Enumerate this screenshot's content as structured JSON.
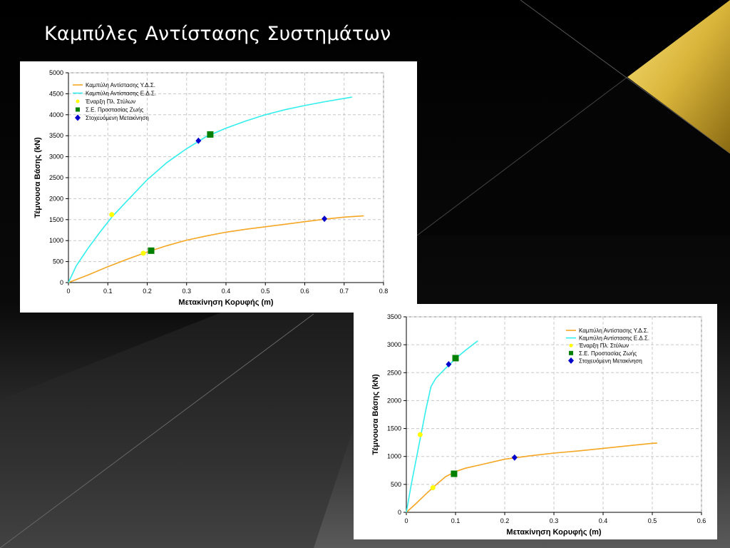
{
  "slide": {
    "title": "Καμπύλες Αντίστασης Συστημάτων",
    "colors": {
      "background": "#000000",
      "accent_gold": "#d9b43a"
    }
  },
  "chart_data": [
    {
      "type": "line",
      "xlabel": "Μετακίνηση Κορυφής (m)",
      "ylabel": "Τέμνουσα Βάσης (kN)",
      "xlim": [
        0,
        0.8
      ],
      "ylim": [
        0,
        5000
      ],
      "xticks": [
        0,
        0.1,
        0.2,
        0.3,
        0.4,
        0.5,
        0.6,
        0.7,
        0.8
      ],
      "yticks": [
        0,
        500,
        1000,
        1500,
        2000,
        2500,
        3000,
        3500,
        4000,
        4500,
        5000
      ],
      "grid": true,
      "legend_position": "top-left",
      "series": [
        {
          "name": "Καμπύλη Αντίστασης Υ.Δ.Σ.",
          "kind": "line",
          "color": "#f5a623",
          "points": [
            [
              0,
              0
            ],
            [
              0.05,
              180
            ],
            [
              0.1,
              380
            ],
            [
              0.15,
              560
            ],
            [
              0.2,
              730
            ],
            [
              0.25,
              880
            ],
            [
              0.3,
              1010
            ],
            [
              0.35,
              1110
            ],
            [
              0.4,
              1200
            ],
            [
              0.45,
              1270
            ],
            [
              0.5,
              1330
            ],
            [
              0.55,
              1390
            ],
            [
              0.6,
              1450
            ],
            [
              0.65,
              1510
            ],
            [
              0.7,
              1560
            ],
            [
              0.75,
              1590
            ]
          ]
        },
        {
          "name": "Καμπύλη Αντίστασης Ε.Δ.Σ.",
          "kind": "line",
          "color": "#33eeee",
          "points": [
            [
              0,
              0
            ],
            [
              0.02,
              400
            ],
            [
              0.05,
              820
            ],
            [
              0.08,
              1200
            ],
            [
              0.11,
              1560
            ],
            [
              0.15,
              1960
            ],
            [
              0.2,
              2450
            ],
            [
              0.25,
              2860
            ],
            [
              0.3,
              3190
            ],
            [
              0.35,
              3480
            ],
            [
              0.4,
              3680
            ],
            [
              0.45,
              3850
            ],
            [
              0.5,
              4000
            ],
            [
              0.55,
              4120
            ],
            [
              0.6,
              4220
            ],
            [
              0.65,
              4310
            ],
            [
              0.7,
              4390
            ],
            [
              0.72,
              4420
            ]
          ]
        },
        {
          "name": "Έναρξη Πλ. Στύλων",
          "kind": "marker",
          "marker": "circle",
          "color": "#ffff00",
          "points": [
            [
              0.11,
              1620
            ],
            [
              0.19,
              700
            ]
          ]
        },
        {
          "name": "Σ.Ε. Προστασίας Ζωής",
          "kind": "marker",
          "marker": "square",
          "color": "#008000",
          "points": [
            [
              0.36,
              3530
            ],
            [
              0.21,
              760
            ]
          ]
        },
        {
          "name": "Στοχευόμενη Μετακίνηση",
          "kind": "marker",
          "marker": "diamond",
          "color": "#0000cc",
          "points": [
            [
              0.33,
              3380
            ],
            [
              0.65,
              1520
            ]
          ]
        }
      ]
    },
    {
      "type": "line",
      "xlabel": "Μετακίνηση Κορυφής (m)",
      "ylabel": "Τέμνουσα Βάσης (kN)",
      "xlim": [
        0,
        0.6
      ],
      "ylim": [
        0,
        3500
      ],
      "xticks": [
        0,
        0.1,
        0.2,
        0.3,
        0.4,
        0.5,
        0.6
      ],
      "yticks": [
        0,
        500,
        1000,
        1500,
        2000,
        2500,
        3000,
        3500
      ],
      "grid": true,
      "legend_position": "top-right",
      "series": [
        {
          "name": "Καμπύλη Αντίστασης Υ.Δ.Σ.",
          "kind": "line",
          "color": "#f5a623",
          "points": [
            [
              0,
              0
            ],
            [
              0.02,
              160
            ],
            [
              0.04,
              330
            ],
            [
              0.06,
              490
            ],
            [
              0.08,
              640
            ],
            [
              0.1,
              730
            ],
            [
              0.12,
              790
            ],
            [
              0.15,
              850
            ],
            [
              0.2,
              950
            ],
            [
              0.25,
              1010
            ],
            [
              0.3,
              1060
            ],
            [
              0.35,
              1100
            ],
            [
              0.4,
              1145
            ],
            [
              0.45,
              1190
            ],
            [
              0.5,
              1235
            ],
            [
              0.51,
              1240
            ]
          ]
        },
        {
          "name": "Καμπύλη Αντίστασης Ε.Δ.Σ.",
          "kind": "line",
          "color": "#33eeee",
          "points": [
            [
              0,
              0
            ],
            [
              0.01,
              500
            ],
            [
              0.02,
              950
            ],
            [
              0.03,
              1400
            ],
            [
              0.04,
              1850
            ],
            [
              0.05,
              2250
            ],
            [
              0.06,
              2400
            ],
            [
              0.08,
              2580
            ],
            [
              0.1,
              2750
            ],
            [
              0.12,
              2900
            ],
            [
              0.145,
              3070
            ]
          ]
        },
        {
          "name": "Έναρξη Πλ. Στύλων",
          "kind": "marker",
          "marker": "circle",
          "color": "#ffff00",
          "points": [
            [
              0.028,
              1390
            ],
            [
              0.054,
              440
            ]
          ]
        },
        {
          "name": "Σ.Ε. Προστασίας Ζωής",
          "kind": "marker",
          "marker": "square",
          "color": "#008000",
          "points": [
            [
              0.1,
              2760
            ],
            [
              0.097,
              690
            ]
          ]
        },
        {
          "name": "Στοχευόμενη Μετακίνηση",
          "kind": "marker",
          "marker": "diamond",
          "color": "#0000cc",
          "points": [
            [
              0.086,
              2650
            ],
            [
              0.22,
              980
            ]
          ]
        }
      ]
    }
  ]
}
